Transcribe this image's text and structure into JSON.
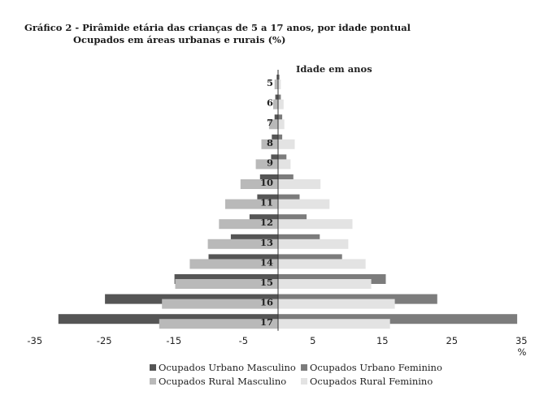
{
  "title": "Gráfico 2 - Pirâmide etária das crianças de 5 a 17 anos, por idade pontual",
  "subtitle": "Ocupados em áreas urbanas e rurais (%)",
  "chart_data": {
    "type": "bar",
    "orientation": "horizontal-pyramid",
    "categories": [
      "5",
      "6",
      "7",
      "8",
      "9",
      "10",
      "11",
      "12",
      "13",
      "14",
      "15",
      "16",
      "17"
    ],
    "category_axis_label": "Idade em anos",
    "xlabel": "%",
    "xlim": [
      -35,
      35
    ],
    "xticks": [
      -35,
      -25,
      -15,
      -5,
      5,
      15,
      25,
      35
    ],
    "xtick_labels": [
      "-35",
      "-25",
      "-15",
      "-5",
      "5",
      "15",
      "25",
      "35"
    ],
    "series": [
      {
        "name": "Ocupados Urbano Masculino",
        "color": "#555555",
        "values": [
          -0.2,
          -0.4,
          -0.5,
          -0.9,
          -1.0,
          -2.6,
          -3.0,
          -4.1,
          -6.8,
          -10.0,
          -14.9,
          -24.9,
          -31.6
        ]
      },
      {
        "name": "Ocupados Rural Masculino",
        "color": "#b9b9b9",
        "values": [
          -0.5,
          -0.7,
          -1.3,
          -2.4,
          -3.2,
          -5.4,
          -7.6,
          -8.5,
          -10.1,
          -12.7,
          -14.8,
          -16.7,
          -17.1
        ]
      },
      {
        "name": "Ocupados Urbano Feminino",
        "color": "#7c7c7c",
        "values": [
          0.2,
          0.4,
          0.6,
          0.6,
          1.2,
          2.2,
          3.1,
          4.1,
          6.0,
          9.2,
          15.5,
          22.9,
          34.4
        ]
      },
      {
        "name": "Ocupados Rural Feminino",
        "color": "#e3e3e3",
        "values": [
          0.4,
          0.8,
          0.9,
          2.4,
          1.8,
          6.1,
          7.4,
          10.7,
          10.1,
          12.6,
          13.4,
          16.8,
          16.1
        ]
      }
    ],
    "legend_position": "bottom",
    "grid": false
  }
}
